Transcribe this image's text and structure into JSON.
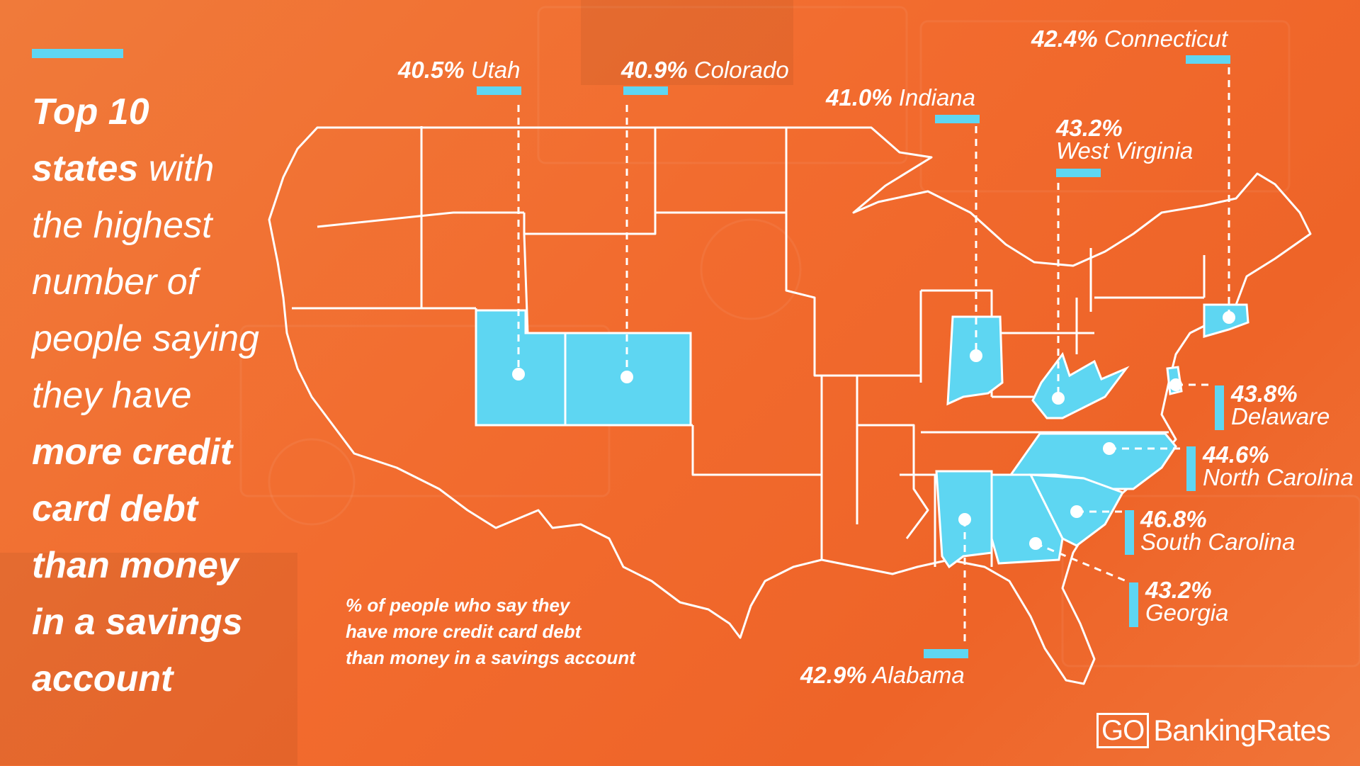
{
  "headline": {
    "line1": "Top 10",
    "line2_bold": "states",
    "line2_rest": " with",
    "line3": "the highest",
    "line4": "number of",
    "line5": "people saying",
    "line6": "they have",
    "line7": "more credit",
    "line8": "card debt",
    "line9": "than money",
    "line10": "in a savings",
    "line11": "account"
  },
  "caption": {
    "line1": "% of people who say they",
    "line2": "have more credit card debt",
    "line3": "than money in a savings account"
  },
  "states": [
    {
      "pct": "40.5%",
      "name": "Utah",
      "value": 40.5
    },
    {
      "pct": "40.9%",
      "name": "Colorado",
      "value": 40.9
    },
    {
      "pct": "41.0%",
      "name": "Indiana",
      "value": 41.0
    },
    {
      "pct": "42.4%",
      "name": "Connecticut",
      "value": 42.4
    },
    {
      "pct": "43.2%",
      "name": "West Virginia",
      "value": 43.2
    },
    {
      "pct": "43.8%",
      "name": "Delaware",
      "value": 43.8
    },
    {
      "pct": "44.6%",
      "name": "North Carolina",
      "value": 44.6
    },
    {
      "pct": "46.8%",
      "name": "South Carolina",
      "value": 46.8
    },
    {
      "pct": "43.2%",
      "name": "Georgia",
      "value": 43.2
    },
    {
      "pct": "42.9%",
      "name": "Alabama",
      "value": 42.9
    }
  ],
  "logo": {
    "box": "GO",
    "text": "BankingRates"
  },
  "colors": {
    "background": "#f26b2e",
    "highlight": "#5ed6f2",
    "outline": "#ffffff"
  }
}
